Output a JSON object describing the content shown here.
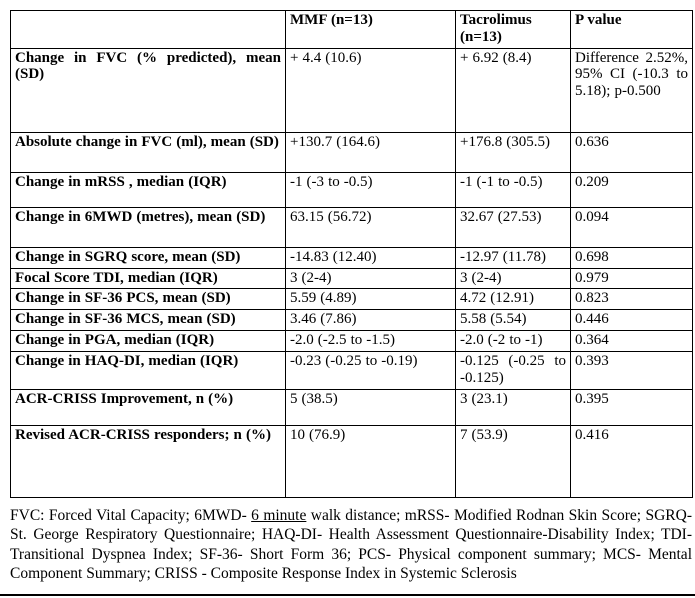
{
  "table": {
    "headers": [
      "",
      "MMF (n=13)",
      "Tacrolimus (n=13)",
      "P value"
    ],
    "rows": [
      {
        "label": "Change in FVC (% predicted), mean (SD)",
        "mmf": "+ 4.4 (10.6)",
        "tac": "+ 6.92 (8.4)",
        "p": "Difference 2.52%, 95% CI (-10.3 to 5.18); p-0.500"
      },
      {
        "label": "Absolute change in FVC (ml), mean (SD)",
        "mmf": "+130.7 (164.6)",
        "tac": "+176.8 (305.5)",
        "p": "0.636"
      },
      {
        "label": "Change in mRSS , median (IQR)",
        "mmf": "-1 (-3 to -0.5)",
        "tac": "-1 (-1 to -0.5)",
        "p": "0.209"
      },
      {
        "label": "Change in 6MWD (metres), mean (SD)",
        "mmf": "63.15 (56.72)",
        "tac": "32.67 (27.53)",
        "p": "0.094"
      },
      {
        "label": "Change in SGRQ score, mean (SD)",
        "mmf": "-14.83 (12.40)",
        "tac": "-12.97 (11.78)",
        "p": "0.698"
      },
      {
        "label": "Focal Score TDI, median (IQR)",
        "mmf": "3 (2-4)",
        "tac": "3 (2-4)",
        "p": "0.979"
      },
      {
        "label": "Change in SF-36 PCS, mean (SD)",
        "mmf": "5.59 (4.89)",
        "tac": "4.72 (12.91)",
        "p": "0.823"
      },
      {
        "label": "Change in SF-36 MCS, mean (SD)",
        "mmf": "3.46 (7.86)",
        "tac": "5.58 (5.54)",
        "p": "0.446"
      },
      {
        "label": "Change in PGA, median (IQR)",
        "mmf": "-2.0 (-2.5 to -1.5)",
        "tac": "-2.0 (-2 to -1)",
        "p": "0.364"
      },
      {
        "label": "Change in HAQ-DI, median (IQR)",
        "mmf": "-0.23 (-0.25 to -0.19)",
        "tac": "-0.125 (-0.25 to -0.125)",
        "p": "0.393"
      },
      {
        "label": "ACR-CRISS Improvement, n (%)",
        "mmf": "5 (38.5)",
        "tac": "3 (23.1)",
        "p": "0.395"
      },
      {
        "label": "Revised ACR-CRISS responders; n (%)",
        "mmf": "10 (76.9)",
        "tac": "7 (53.9)",
        "p": "0.416"
      }
    ]
  },
  "footnote": {
    "part1": "FVC: Forced Vital Capacity; 6MWD- ",
    "underlined": "6 minute",
    "part2": " walk distance; mRSS- Modified Rodnan Skin Score; SGRQ- St. George Respiratory Questionnaire; HAQ-DI- Health Assessment Questionnaire-Disability Index; TDI- Transitional Dyspnea Index; SF-36- Short Form 36; PCS- Physical component summary; MCS- Mental Component Summary; CRISS - Composite Response Index in Systemic Sclerosis"
  }
}
